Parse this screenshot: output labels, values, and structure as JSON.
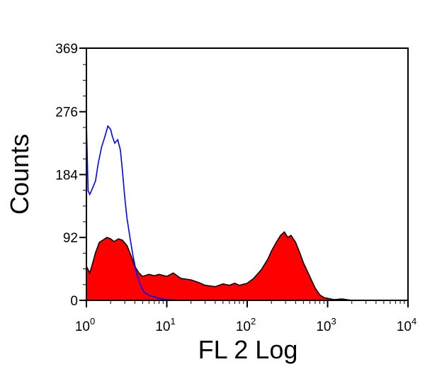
{
  "chart_data": {
    "type": "area",
    "title": "",
    "xlabel": "FL 2 Log",
    "ylabel": "Counts",
    "x_scale": "log",
    "xlim": [
      1,
      10000
    ],
    "ylim": [
      0,
      369
    ],
    "x_ticks": [
      {
        "value": 1,
        "base": "10",
        "exp": "0"
      },
      {
        "value": 10,
        "base": "10",
        "exp": "1"
      },
      {
        "value": 100,
        "base": "10",
        "exp": "2"
      },
      {
        "value": 1000,
        "base": "10",
        "exp": "3"
      },
      {
        "value": 10000,
        "base": "10",
        "exp": "4"
      }
    ],
    "y_ticks": [
      0,
      92,
      184,
      276,
      369
    ],
    "grid": false,
    "legend": "none",
    "series": [
      {
        "color": "#ff0000",
        "outline": "#000000",
        "style": "filled",
        "points": [
          [
            1.0,
            50
          ],
          [
            1.1,
            40
          ],
          [
            1.2,
            55
          ],
          [
            1.3,
            70
          ],
          [
            1.45,
            85
          ],
          [
            1.6,
            88
          ],
          [
            1.8,
            92
          ],
          [
            2.0,
            90
          ],
          [
            2.2,
            86
          ],
          [
            2.5,
            90
          ],
          [
            2.8,
            88
          ],
          [
            3.2,
            80
          ],
          [
            3.6,
            65
          ],
          [
            4.0,
            50
          ],
          [
            4.5,
            40
          ],
          [
            5.0,
            35
          ],
          [
            6.0,
            38
          ],
          [
            7.0,
            36
          ],
          [
            8.0,
            38
          ],
          [
            10,
            35
          ],
          [
            12,
            40
          ],
          [
            15,
            32
          ],
          [
            20,
            30
          ],
          [
            25,
            26
          ],
          [
            30,
            22
          ],
          [
            40,
            20
          ],
          [
            50,
            24
          ],
          [
            60,
            22
          ],
          [
            70,
            25
          ],
          [
            80,
            22
          ],
          [
            100,
            25
          ],
          [
            120,
            32
          ],
          [
            150,
            45
          ],
          [
            180,
            60
          ],
          [
            200,
            72
          ],
          [
            230,
            85
          ],
          [
            260,
            95
          ],
          [
            290,
            100
          ],
          [
            320,
            92
          ],
          [
            350,
            95
          ],
          [
            400,
            85
          ],
          [
            450,
            70
          ],
          [
            500,
            55
          ],
          [
            600,
            35
          ],
          [
            700,
            18
          ],
          [
            800,
            8
          ],
          [
            900,
            4
          ],
          [
            1000,
            3
          ],
          [
            1200,
            1
          ],
          [
            1500,
            2
          ],
          [
            2000,
            0
          ]
        ]
      },
      {
        "color": "#0000ff",
        "style": "line",
        "points": [
          [
            1.0,
            260
          ],
          [
            1.05,
            160
          ],
          [
            1.1,
            155
          ],
          [
            1.2,
            165
          ],
          [
            1.3,
            175
          ],
          [
            1.4,
            200
          ],
          [
            1.55,
            225
          ],
          [
            1.7,
            240
          ],
          [
            1.85,
            255
          ],
          [
            2.0,
            250
          ],
          [
            2.1,
            240
          ],
          [
            2.25,
            230
          ],
          [
            2.45,
            235
          ],
          [
            2.65,
            220
          ],
          [
            2.8,
            190
          ],
          [
            3.0,
            150
          ],
          [
            3.2,
            120
          ],
          [
            3.5,
            90
          ],
          [
            3.8,
            65
          ],
          [
            4.2,
            40
          ],
          [
            4.6,
            25
          ],
          [
            5.2,
            12
          ],
          [
            6.0,
            7
          ],
          [
            7.0,
            5
          ],
          [
            8.0,
            3
          ],
          [
            10,
            1
          ],
          [
            15,
            0
          ],
          [
            20,
            0
          ]
        ]
      }
    ]
  }
}
